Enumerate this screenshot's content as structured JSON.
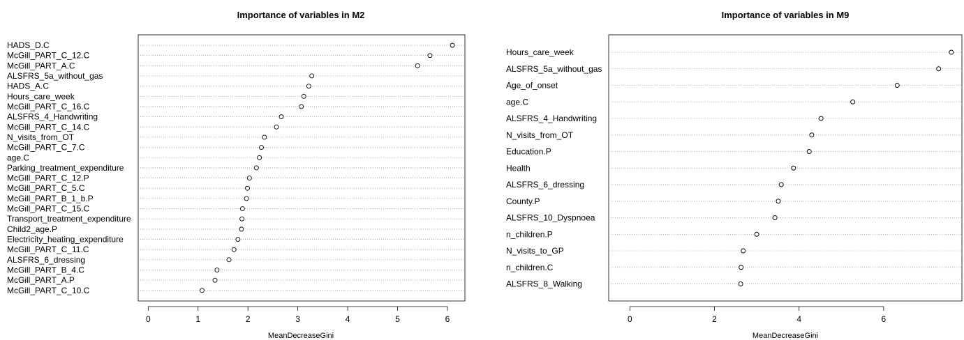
{
  "chart_data": [
    {
      "type": "scatter",
      "title": "Importance of variables in M2",
      "xlabel": "MeanDecreaseGini",
      "xlim": [
        -0.2,
        6.35
      ],
      "xticks": [
        "0",
        "1",
        "2",
        "3",
        "4",
        "5",
        "6"
      ],
      "grid": "horizontal dotted",
      "categories": [
        "HADS_D.C",
        "McGill_PART_C_12.C",
        "McGill_PART_A.C",
        "ALSFRS_5a_without_gas",
        "HADS_A.C",
        "Hours_care_week",
        "McGill_PART_C_16.C",
        "ALSFRS_4_Handwriting",
        "McGill_PART_C_14.C",
        "N_visits_from_OT",
        "McGill_PART_C_7.C",
        "age.C",
        "Parking_treatment_expenditure",
        "McGill_PART_C_12.P",
        "McGill_PART_C_5.C",
        "McGill_PART_B_1_b.P",
        "McGill_PART_C_15.C",
        "Transport_treatment_expenditure",
        "Child2_age.P",
        "Electricity_heating_expenditure",
        "McGill_PART_C_11.C",
        "ALSFRS_6_dressing",
        "McGill_PART_B_4.C",
        "McGill_PART_A.P",
        "McGill_PART_C_10.C"
      ],
      "values": [
        6.1,
        5.65,
        5.4,
        3.28,
        3.22,
        3.12,
        3.07,
        2.67,
        2.57,
        2.33,
        2.27,
        2.23,
        2.17,
        2.03,
        1.99,
        1.97,
        1.89,
        1.88,
        1.87,
        1.8,
        1.72,
        1.62,
        1.38,
        1.34,
        1.08
      ]
    },
    {
      "type": "scatter",
      "title": "Importance of variables in M9",
      "xlabel": "MeanDecreaseGini",
      "xlim": [
        -0.5,
        7.85
      ],
      "xticks": [
        "0",
        "2",
        "4",
        "6"
      ],
      "grid": "horizontal dotted",
      "categories": [
        "Hours_care_week",
        "ALSFRS_5a_without_gas",
        "Age_of_onset",
        "age.C",
        "ALSFRS_4_Handwriting",
        "N_visits_from_OT",
        "Education.P",
        "Health",
        "ALSFRS_6_dressing",
        "County.P",
        "ALSFRS_10_Dyspnoea",
        "n_children.P",
        "N_visits_to_GP",
        "n_children.C",
        "ALSFRS_8_Walking"
      ],
      "values": [
        7.6,
        7.3,
        6.32,
        5.27,
        4.52,
        4.3,
        4.24,
        3.87,
        3.58,
        3.51,
        3.43,
        3.0,
        2.68,
        2.63,
        2.62
      ]
    }
  ]
}
